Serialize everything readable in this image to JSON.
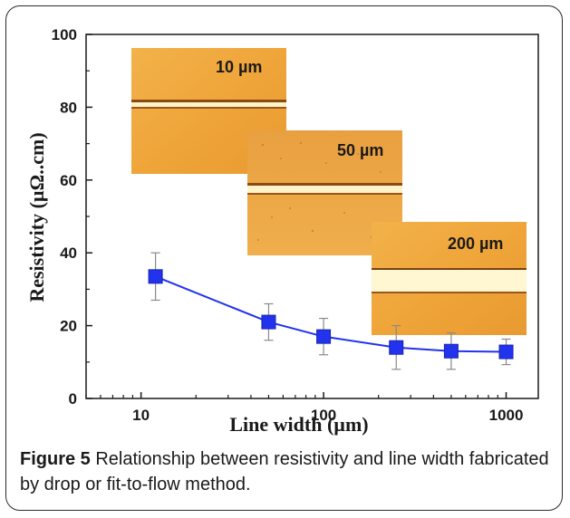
{
  "chart_data": {
    "type": "line",
    "xlabel": "Line width (µm)",
    "ylabel": "Resistivity (µΩ..cm)",
    "x_scale": "log",
    "xlim": [
      5,
      1500
    ],
    "ylim": [
      0,
      100
    ],
    "x_ticks": [
      10,
      100,
      1000
    ],
    "x_tick_labels": [
      "10",
      "100",
      "1000"
    ],
    "y_ticks": [
      0,
      20,
      40,
      60,
      80,
      100
    ],
    "y_tick_labels": [
      "0",
      "20",
      "40",
      "60",
      "80",
      "100"
    ],
    "series": [
      {
        "x": [
          12,
          50,
          100,
          250,
          500,
          1000
        ],
        "y": [
          33.5,
          21,
          17,
          14,
          13,
          12.8
        ],
        "err": [
          6.5,
          5,
          5,
          6,
          5,
          3.5
        ],
        "color": "#2233ee"
      }
    ],
    "insets": [
      {
        "label": "10 µm"
      },
      {
        "label": "50 µm"
      },
      {
        "label": "200 µm"
      }
    ]
  },
  "caption": {
    "figure": "Figure 5",
    "text": " Relationship between resistivity and line width fabricated by drop or fit-to-flow method."
  }
}
